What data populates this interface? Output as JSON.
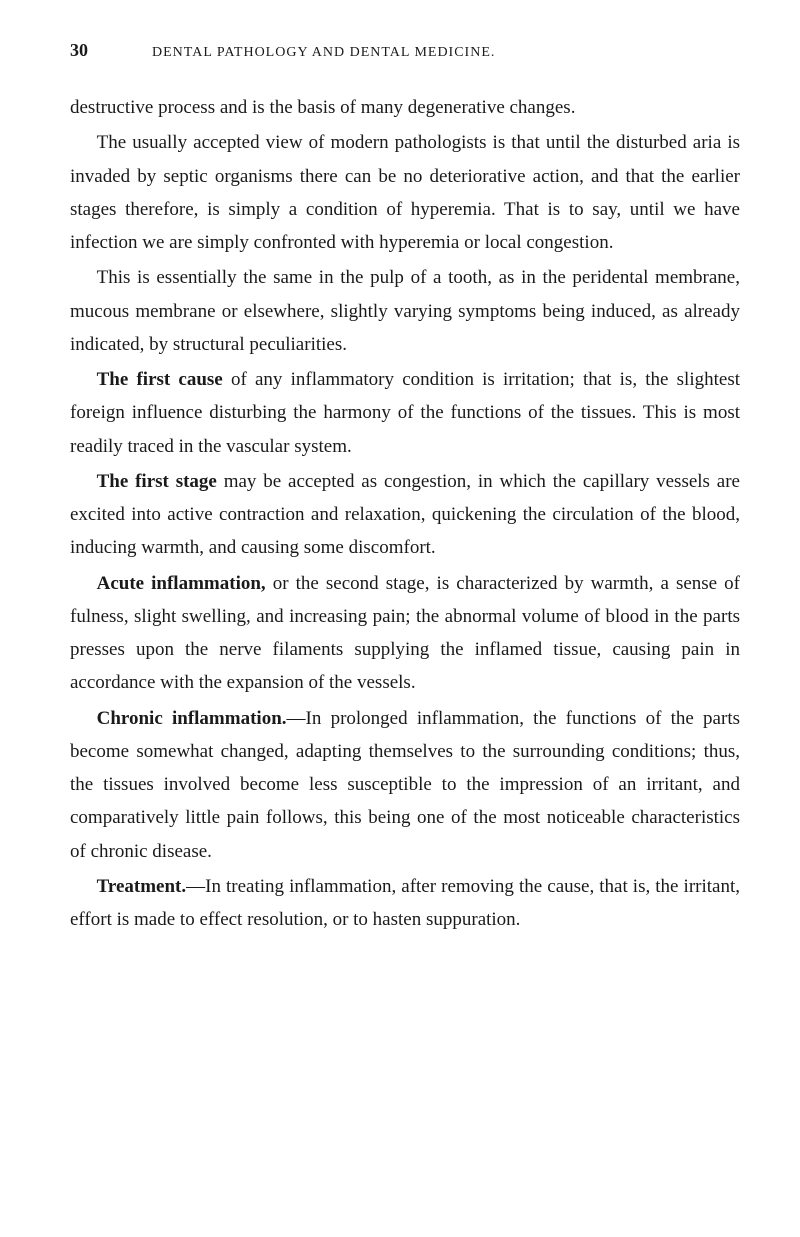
{
  "page_number": "30",
  "header_title": "DENTAL PATHOLOGY AND DENTAL MEDICINE.",
  "paragraphs": {
    "p1": "destructive process and is the basis of many degenerative changes.",
    "p2": "The usually accepted view of modern pathologists is that until the disturbed aria is invaded by septic organisms there can be no deteriorative action, and that the earlier stages therefore, is simply a condition of hyperemia. That is to say, until we have infection we are simply confronted with hyperemia or local congestion.",
    "p3": "This is essentially the same in the pulp of a tooth, as in the peridental membrane, mucous membrane or elsewhere, slightly varying symptoms being induced, as already indicated, by structural peculiarities.",
    "p4_bold": "The first cause",
    "p4_text": " of any inflammatory condition is irritation; that is, the slightest foreign influence disturbing the harmony of the functions of the tissues. This is most readily traced in the vascular system.",
    "p5_bold": "The first stage",
    "p5_text": " may be accepted as congestion, in which the capillary vessels are excited into active contraction and relaxation, quickening the circulation of the blood, inducing warmth, and causing some discomfort.",
    "p6_bold": "Acute inflammation,",
    "p6_text": " or the second stage, is characterized by warmth, a sense of fulness, slight swelling, and increasing pain; the abnormal volume of blood in the parts presses upon the nerve filaments supplying the inflamed tissue, causing pain in accordance with the expansion of the vessels.",
    "p7_bold": "Chronic inflammation.",
    "p7_text": "—In prolonged inflammation, the functions of the parts become somewhat changed, adapting themselves to the surrounding conditions; thus, the tissues involved become less susceptible to the impression of an irritant, and comparatively little pain follows, this being one of the most noticeable characteristics of chronic disease.",
    "p8_bold": "Treatment.",
    "p8_text": "—In treating inflammation, after removing the cause, that is, the irritant, effort is made to effect resolution, or to hasten suppuration."
  }
}
